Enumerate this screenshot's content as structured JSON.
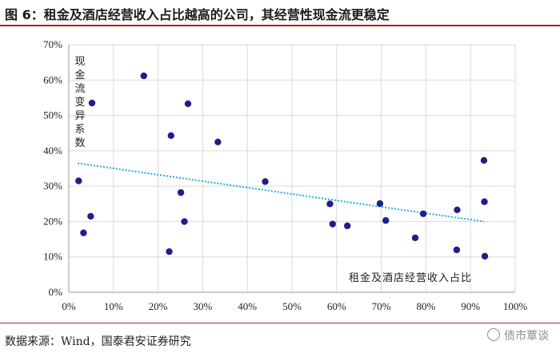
{
  "header": {
    "title": "图 6：租金及酒店经营收入占比越高的公司，其经营性现金流更稳定"
  },
  "footer": {
    "source": "数据来源：Wind，国泰君安证券研究",
    "watermark": "债市覃谈"
  },
  "colors": {
    "accent_rule": "#b41e1e",
    "point": "#1f1f8c",
    "trendline": "#1fb0d8",
    "grid": "#d9d9d9"
  },
  "chart_data": {
    "type": "scatter",
    "title": "",
    "xlabel": "租金及酒店经营收入占比",
    "ylabel": "现金流变异系数",
    "xlim": [
      0,
      100
    ],
    "ylim": [
      0,
      70
    ],
    "x_ticks": [
      "0%",
      "10%",
      "20%",
      "30%",
      "40%",
      "50%",
      "60%",
      "70%",
      "80%",
      "90%",
      "100%"
    ],
    "y_ticks": [
      "0%",
      "10%",
      "20%",
      "30%",
      "40%",
      "50%",
      "60%",
      "70%"
    ],
    "grid": "vertical-and-horizontal",
    "trendline": {
      "style": "dotted",
      "x": [
        2,
        93
      ],
      "y": [
        36.5,
        20
      ]
    },
    "points": [
      {
        "x": 2.2,
        "y": 31.5
      },
      {
        "x": 3.3,
        "y": 16.8
      },
      {
        "x": 4.9,
        "y": 21.5
      },
      {
        "x": 5.2,
        "y": 53.5
      },
      {
        "x": 16.8,
        "y": 61.2
      },
      {
        "x": 22.5,
        "y": 11.5
      },
      {
        "x": 22.9,
        "y": 44.3
      },
      {
        "x": 25.1,
        "y": 28.2
      },
      {
        "x": 25.9,
        "y": 20.0
      },
      {
        "x": 26.7,
        "y": 53.3
      },
      {
        "x": 33.4,
        "y": 42.5
      },
      {
        "x": 44.0,
        "y": 31.3
      },
      {
        "x": 58.5,
        "y": 25.0
      },
      {
        "x": 59.1,
        "y": 19.3
      },
      {
        "x": 62.4,
        "y": 18.8
      },
      {
        "x": 69.7,
        "y": 25.1
      },
      {
        "x": 71.0,
        "y": 20.3
      },
      {
        "x": 77.6,
        "y": 15.4
      },
      {
        "x": 79.4,
        "y": 22.2
      },
      {
        "x": 86.9,
        "y": 12.0
      },
      {
        "x": 87.0,
        "y": 23.3
      },
      {
        "x": 93.0,
        "y": 37.3
      },
      {
        "x": 93.1,
        "y": 25.6
      },
      {
        "x": 93.2,
        "y": 10.2
      }
    ]
  }
}
